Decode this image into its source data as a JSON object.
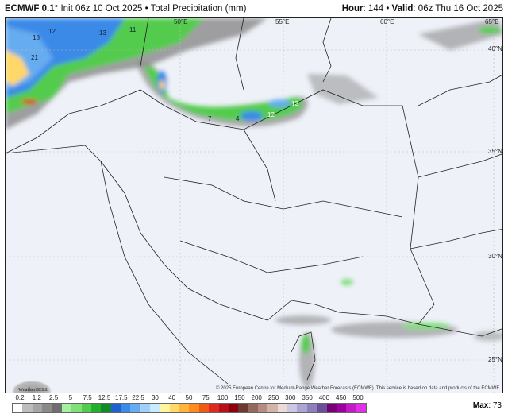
{
  "header": {
    "model": "ECMWF 0.1",
    "degree": "°",
    "init": "Init 06z 10 Oct 2025",
    "separator": "•",
    "product": "Total Precipitation (mm)",
    "hour_label": "Hour",
    "hour_value": ": 144",
    "valid_label": "Valid",
    "valid_value": ": 06z Thu 16 Oct 2025"
  },
  "map": {
    "lon_labels": [
      "50°E",
      "55°E",
      "60°E",
      "65°E"
    ],
    "lat_labels": [
      "40°N",
      "35°N",
      "30°N",
      "25°N"
    ],
    "value_labels": [
      "18",
      "12",
      "21",
      "13",
      "11",
      "12",
      "13",
      "7",
      "4"
    ],
    "credit": "© 2025 European Centre for Medium-Range Weather Forecasts (ECMWF). This service is based on data and products of the ECMWF.",
    "logo_text": "WeatherBELL"
  },
  "legend": {
    "ticks": [
      "0.2",
      "1.2",
      "2.5",
      "5",
      "7.5",
      "12.5",
      "17.5",
      "22.5",
      "30",
      "40",
      "50",
      "75",
      "100",
      "150",
      "200",
      "250",
      "300",
      "350",
      "400",
      "450",
      "500"
    ],
    "colors": [
      "#ffffff",
      "#bdbdbd",
      "#a5a5a5",
      "#8a8a8a",
      "#6e6e6e",
      "#a6f0a0",
      "#7fe07a",
      "#52cc4e",
      "#22b02a",
      "#128a2c",
      "#1f62cf",
      "#3a8ae8",
      "#66acf0",
      "#a0d0f8",
      "#c8ecfd",
      "#fff4a0",
      "#ffd868",
      "#ffb43c",
      "#ff8a1e",
      "#f05a14",
      "#dc2a1e",
      "#b8101a",
      "#8a0010",
      "#6c3a30",
      "#946a5e",
      "#b68c80",
      "#d4b4a8",
      "#eadcd4",
      "#ccc8e4",
      "#aaa6d4",
      "#8c80bc",
      "#6a4e9c",
      "#760076",
      "#9e00a0",
      "#c41ac6",
      "#e030e6"
    ],
    "max_label": "Max",
    "max_value": ": 73"
  }
}
